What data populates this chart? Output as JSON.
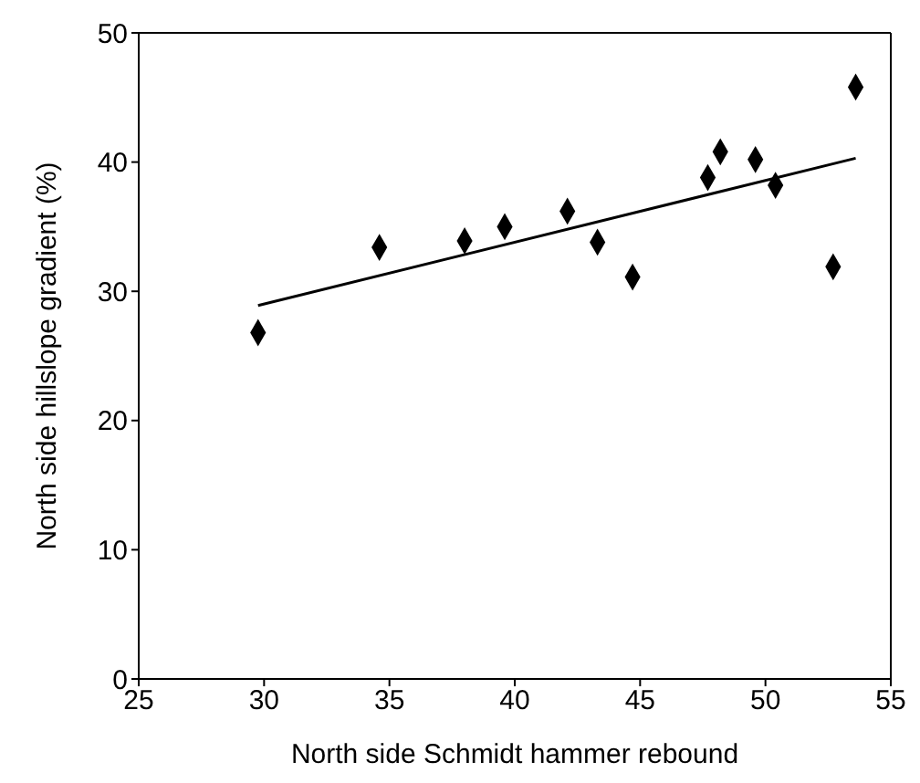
{
  "chart_data": {
    "type": "scatter",
    "xlabel": "North side Schmidt hammer rebound",
    "ylabel": "North side hillslope gradient (%)",
    "xlim": [
      25,
      55
    ],
    "xticks": [
      25,
      30,
      35,
      40,
      45,
      50,
      55
    ],
    "ylim": [
      0,
      50
    ],
    "yticks": [
      0,
      10,
      20,
      30,
      40,
      50
    ],
    "series": [
      {
        "color": "#000000",
        "marker": "diamond",
        "x": [
          29.76,
          34.6,
          38.0,
          39.6,
          42.1,
          43.3,
          44.7,
          47.7,
          48.2,
          49.6,
          50.4,
          52.7,
          53.6
        ],
        "values": [
          26.8,
          33.4,
          33.9,
          35.0,
          36.2,
          33.8,
          31.1,
          38.8,
          40.8,
          40.2,
          38.2,
          31.9,
          45.8
        ]
      },
      {
        "type": "line",
        "color": "#000000",
        "marker": "none",
        "line_style": "solid",
        "x": [
          29.76,
          53.6
        ],
        "values": [
          28.9,
          40.3
        ]
      }
    ]
  }
}
